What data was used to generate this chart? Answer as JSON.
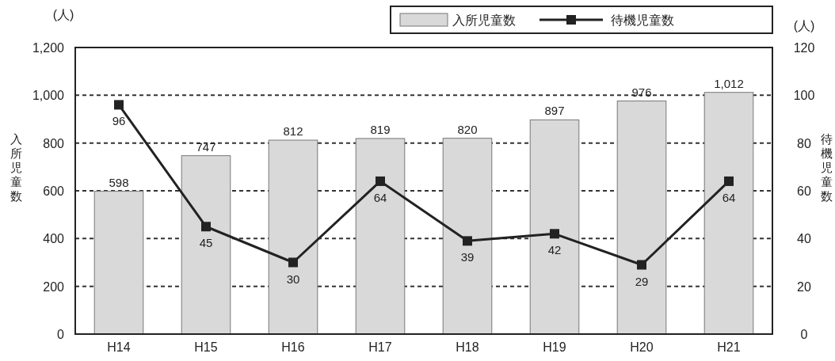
{
  "chart_data": {
    "type": "bar",
    "categories": [
      "H14",
      "H15",
      "H16",
      "H17",
      "H18",
      "H19",
      "H20",
      "H21"
    ],
    "series": [
      {
        "name": "入所児童数",
        "color": "#d9d9d9",
        "values": [
          598,
          747,
          812,
          819,
          820,
          897,
          976,
          1012
        ],
        "value_labels": [
          "598",
          "747",
          "812",
          "819",
          "820",
          "897",
          "976",
          "1,012"
        ]
      },
      {
        "name": "待機児童数",
        "type": "line",
        "axis": "y2",
        "color": "#222222",
        "marker": "square",
        "values": [
          96,
          45,
          30,
          64,
          39,
          42,
          29,
          64
        ],
        "value_labels": [
          "96",
          "45",
          "30",
          "64",
          "39",
          "42",
          "29",
          "64"
        ]
      }
    ],
    "ylabel": "入所児童数",
    "y2label": "待機児童数",
    "ylim": [
      0,
      1200
    ],
    "yticks": [
      0,
      200,
      400,
      600,
      800,
      {
        "value": 1000,
        "label": "1,000"
      },
      {
        "value": 1200,
        "label": "1,200"
      }
    ],
    "y2lim": [
      0,
      120
    ],
    "y2ticks": [
      0,
      20,
      40,
      60,
      80,
      100,
      120
    ],
    "annotations": [
      "(人)",
      "(人)"
    ],
    "grid": "y",
    "legend": "top right"
  }
}
